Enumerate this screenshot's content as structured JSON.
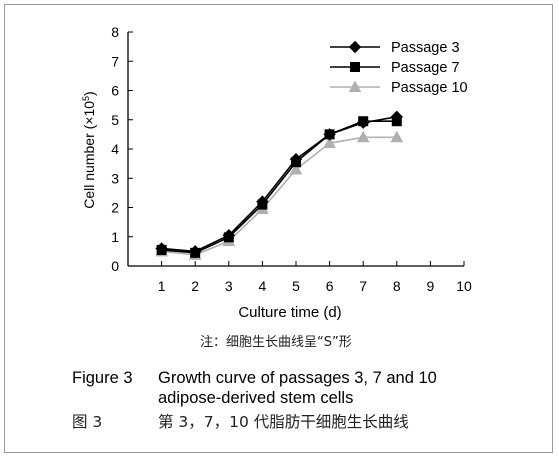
{
  "chart_data": {
    "type": "line",
    "ylabel_main": "Cell number (×10",
    "ylabel_sup": "5",
    "ylabel_end": ")",
    "xlabel": "Culture time (d)",
    "xlim": [
      0,
      10
    ],
    "ylim": [
      0,
      8
    ],
    "x_ticks": [
      "1",
      "2",
      "3",
      "4",
      "5",
      "6",
      "7",
      "8",
      "9",
      "10"
    ],
    "y_ticks": [
      "0",
      "1",
      "2",
      "3",
      "4",
      "5",
      "6",
      "7",
      "8"
    ],
    "x": [
      1,
      2,
      3,
      4,
      5,
      6,
      7,
      8
    ],
    "series": [
      {
        "name": "Passage 3",
        "marker": "diamond",
        "color": "#000000",
        "values": [
          0.6,
          0.5,
          1.05,
          2.2,
          3.65,
          4.5,
          4.9,
          5.1
        ]
      },
      {
        "name": "Passage 7",
        "marker": "square",
        "color": "#000000",
        "values": [
          0.55,
          0.45,
          0.98,
          2.1,
          3.55,
          4.5,
          4.95,
          4.95
        ]
      },
      {
        "name": "Passage 10",
        "marker": "triangle",
        "color": "#b0b0b0",
        "values": [
          0.5,
          0.38,
          0.85,
          1.95,
          3.3,
          4.2,
          4.4,
          4.4
        ]
      }
    ],
    "legend_position": "top-right",
    "grid": false
  },
  "note": "注：细胞生长曲线呈“S”形",
  "caption": {
    "label_en": "Figure 3",
    "title_en_line1": "Growth curve of passages 3, 7 and 10",
    "title_en_line2": "adipose-derived stem cells",
    "label_zh": "图  3",
    "title_zh": "第 3，7，10 代脂肪干细胞生长曲线"
  }
}
